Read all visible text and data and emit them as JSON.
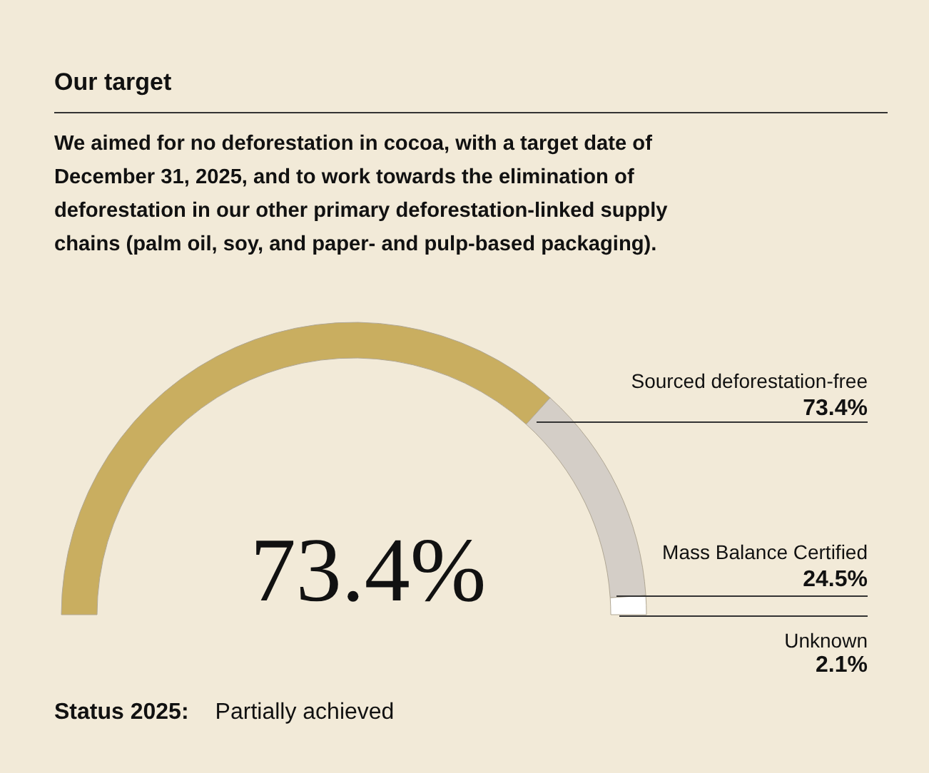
{
  "chart_data": {
    "type": "donut",
    "title": "Our target",
    "subtitle": "We aimed for no deforestation in cocoa, with a target date of\nDecember 31, 2025, and to work towards the elimination of\ndeforestation in our other primary deforestation-linked supply\nchains (palm oil, soy, and paper- and pulp-based packaging).",
    "categories": [
      "Sourced deforestation-free",
      "Mass Balance Certified",
      "Unknown"
    ],
    "values": [
      73.4,
      24.5,
      2.1
    ],
    "colors": [
      "#c9ae60",
      "#d4cec7",
      "#ffffff"
    ],
    "value_labels": [
      "73.4%",
      "24.5%",
      "2.1%"
    ],
    "annotations": [
      "73.4%",
      "Status 2025: Partially achieved"
    ]
  }
}
